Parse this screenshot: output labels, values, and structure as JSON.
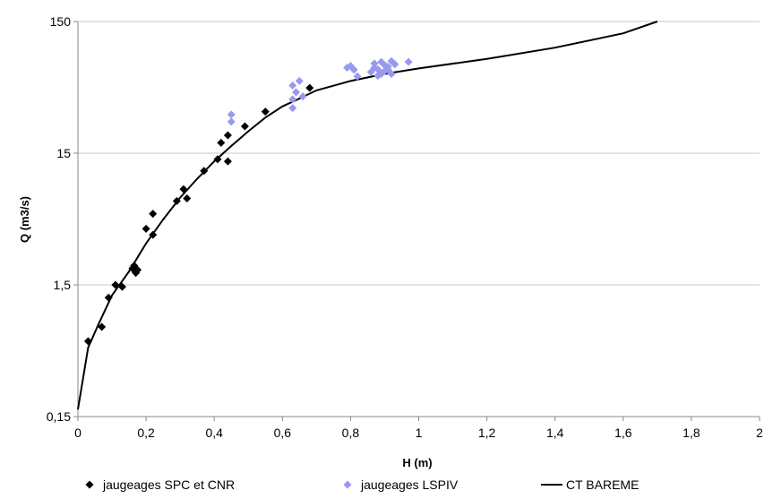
{
  "chart_data": {
    "type": "scatter",
    "xlabel": "H (m)",
    "ylabel": "Q (m3/s)",
    "xlim": [
      0,
      2
    ],
    "ylim": [
      0.15,
      150
    ],
    "yscale": "log",
    "x_ticks": [
      "0",
      "0,2",
      "0,4",
      "0,6",
      "0,8",
      "1",
      "1,2",
      "1,4",
      "1,6",
      "1,8",
      "2"
    ],
    "y_ticks": [
      {
        "value": 0.15,
        "label": "0,15"
      },
      {
        "value": 1.5,
        "label": "1,5"
      },
      {
        "value": 15,
        "label": "15"
      },
      {
        "value": 150,
        "label": "150"
      }
    ],
    "grid": "horizontal",
    "legend_position": "bottom",
    "series": [
      {
        "name": "jaugeages SPC et CNR",
        "kind": "scatter",
        "marker": "diamond",
        "color": "#000000",
        "points": [
          [
            0.03,
            0.56
          ],
          [
            0.07,
            0.72
          ],
          [
            0.09,
            1.2
          ],
          [
            0.11,
            1.5
          ],
          [
            0.13,
            1.45
          ],
          [
            0.16,
            2.0
          ],
          [
            0.165,
            2.1
          ],
          [
            0.17,
            1.85
          ],
          [
            0.175,
            1.95
          ],
          [
            0.2,
            4.0
          ],
          [
            0.22,
            5.2
          ],
          [
            0.22,
            3.6
          ],
          [
            0.29,
            6.5
          ],
          [
            0.31,
            8.0
          ],
          [
            0.32,
            6.8
          ],
          [
            0.37,
            11.0
          ],
          [
            0.41,
            13.5
          ],
          [
            0.42,
            18.0
          ],
          [
            0.44,
            13.0
          ],
          [
            0.44,
            20.5
          ],
          [
            0.49,
            24.0
          ],
          [
            0.55,
            31.0
          ],
          [
            0.68,
            47.0
          ]
        ]
      },
      {
        "name": "jaugeages LSPIV",
        "kind": "scatter",
        "marker": "diamond",
        "color": "#9999ee",
        "points": [
          [
            0.45,
            26.0
          ],
          [
            0.45,
            29.5
          ],
          [
            0.63,
            33.0
          ],
          [
            0.63,
            38.5
          ],
          [
            0.63,
            49.0
          ],
          [
            0.64,
            43.5
          ],
          [
            0.65,
            53.0
          ],
          [
            0.66,
            40.5
          ],
          [
            0.79,
            67.0
          ],
          [
            0.8,
            69.0
          ],
          [
            0.81,
            64.5
          ],
          [
            0.82,
            57.5
          ],
          [
            0.86,
            62.0
          ],
          [
            0.87,
            67.0
          ],
          [
            0.87,
            72.0
          ],
          [
            0.88,
            58.0
          ],
          [
            0.88,
            65.0
          ],
          [
            0.89,
            74.0
          ],
          [
            0.89,
            60.0
          ],
          [
            0.9,
            63.0
          ],
          [
            0.9,
            70.0
          ],
          [
            0.91,
            64.5
          ],
          [
            0.91,
            68.0
          ],
          [
            0.92,
            60.0
          ],
          [
            0.92,
            75.0
          ],
          [
            0.93,
            71.0
          ],
          [
            0.97,
            74.0
          ]
        ]
      },
      {
        "name": "CT BAREME",
        "kind": "line",
        "color": "#000000",
        "points": [
          [
            0.0,
            0.17
          ],
          [
            0.03,
            0.5
          ],
          [
            0.06,
            0.75
          ],
          [
            0.1,
            1.25
          ],
          [
            0.15,
            1.9
          ],
          [
            0.2,
            3.1
          ],
          [
            0.25,
            4.7
          ],
          [
            0.3,
            6.9
          ],
          [
            0.35,
            9.6
          ],
          [
            0.4,
            13.0
          ],
          [
            0.45,
            17.0
          ],
          [
            0.5,
            22.0
          ],
          [
            0.55,
            28.0
          ],
          [
            0.6,
            34.0
          ],
          [
            0.65,
            39.0
          ],
          [
            0.7,
            45.0
          ],
          [
            0.8,
            53.0
          ],
          [
            0.9,
            60.0
          ],
          [
            1.0,
            66.0
          ],
          [
            1.2,
            78.0
          ],
          [
            1.4,
            95.0
          ],
          [
            1.6,
            122.0
          ],
          [
            1.7,
            150.0
          ]
        ]
      }
    ]
  }
}
